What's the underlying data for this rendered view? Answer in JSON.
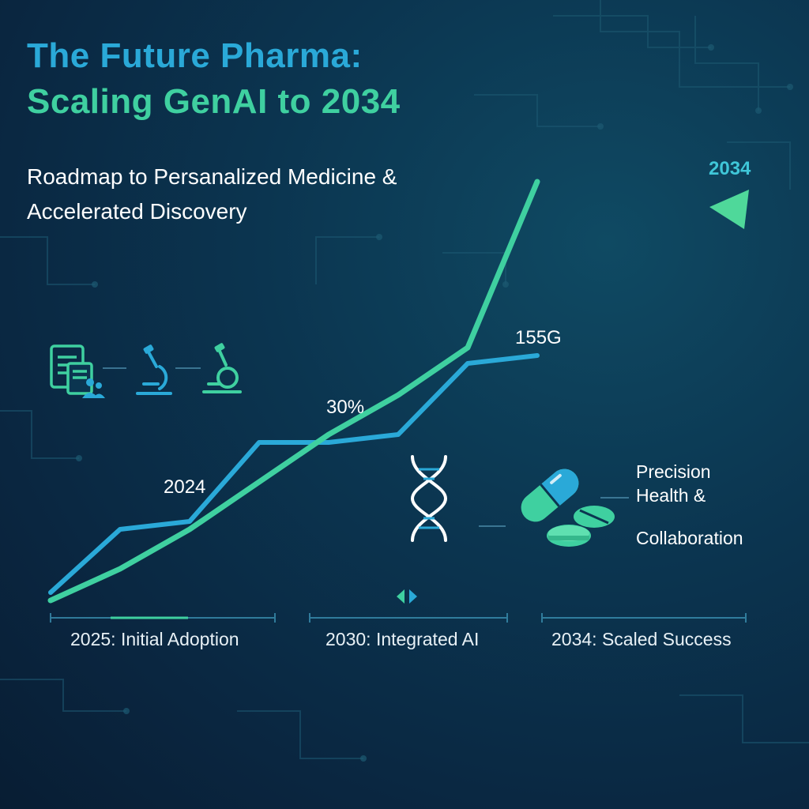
{
  "title": {
    "line1": "The Future Pharma:",
    "line2": "Scaling GenAI to 2034"
  },
  "subtitle": {
    "line1": "Roadmap to Persanalized Medicine &",
    "line2": "Accelerated Discovery"
  },
  "side_text": {
    "line1": "Precision",
    "line2": "Health &",
    "line3": "Collaboration"
  },
  "phases": [
    "2025: Initial Adoption",
    "2030: Integrated AI",
    "2034: Scaled Success"
  ],
  "colors": {
    "blue": "#2aa9d8",
    "green": "#3fd0a0",
    "cyan": "#3fc6d8"
  },
  "icons": [
    "documents-users-icon",
    "microscope-icon",
    "microscope-icon",
    "dna-icon",
    "pill-capsule-icon",
    "tablets-icon",
    "split-arrows-icon"
  ],
  "chart_data": {
    "type": "line",
    "title": "The Future Pharma: Scaling GenAI to 2034",
    "xlabel": "",
    "ylabel": "",
    "x": [
      0,
      1,
      2,
      3,
      4,
      5,
      6,
      7,
      8,
      9,
      10
    ],
    "series": [
      {
        "name": "blue-trend",
        "color": "#2aa9d8",
        "values": [
          3,
          11,
          12,
          22,
          22,
          23,
          32,
          33,
          null,
          null,
          null
        ]
      },
      {
        "name": "green-trend",
        "color": "#3fd0a0",
        "values": [
          2,
          6,
          11,
          17,
          23,
          28,
          34,
          55,
          null,
          null,
          null
        ]
      }
    ],
    "annotations": [
      "2024",
      "30%",
      "155G",
      "2034"
    ],
    "ylim": [
      0,
      60
    ],
    "grid": false
  }
}
